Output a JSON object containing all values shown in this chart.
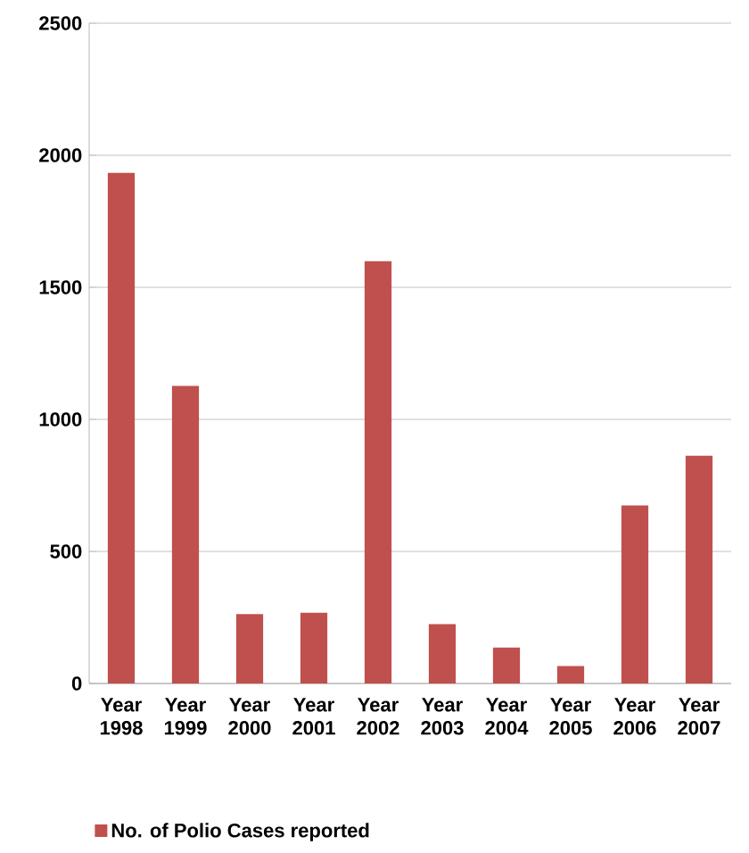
{
  "chart_data": {
    "type": "bar",
    "categories": [
      "Year 1998",
      "Year 1999",
      "Year 2000",
      "Year 2001",
      "Year 2002",
      "Year 2003",
      "Year 2004",
      "Year 2005",
      "Year 2006",
      "Year 2007"
    ],
    "series": [
      {
        "name": "No. of Polio Cases reported",
        "color": "#c0504d",
        "values": [
          1933,
          1127,
          263,
          268,
          1599,
          225,
          136,
          66,
          674,
          862
        ]
      }
    ],
    "ylim": [
      0,
      2500
    ],
    "yticks": [
      0,
      500,
      1000,
      1500,
      2000,
      2500
    ],
    "grid": "y",
    "legend": "bottom"
  }
}
